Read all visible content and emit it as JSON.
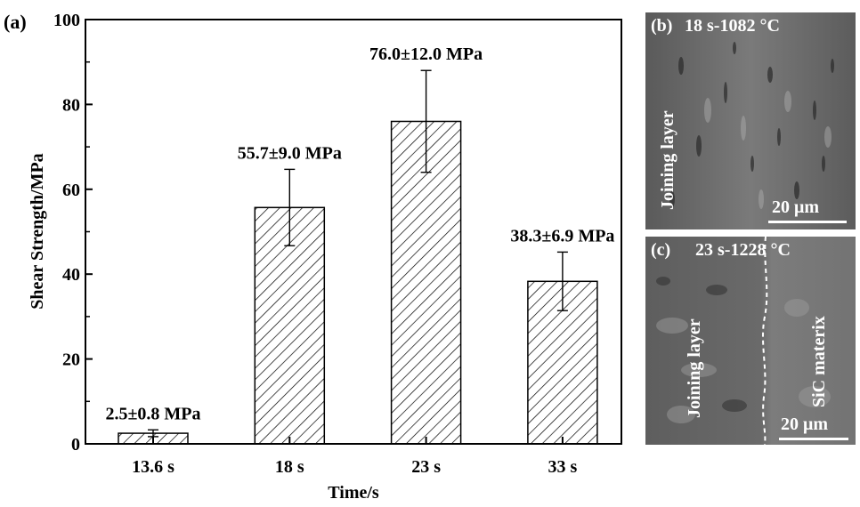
{
  "panel_a_label": "(a)",
  "chart_data": {
    "type": "bar",
    "categories": [
      "13.6 s",
      "18 s",
      "23 s",
      "33 s"
    ],
    "values": [
      2.5,
      55.7,
      76.0,
      38.3
    ],
    "errors": [
      0.8,
      9.0,
      12.0,
      6.9
    ],
    "data_labels": [
      "2.5±0.8 MPa",
      "55.7±9.0 MPa",
      "76.0±12.0 MPa",
      "38.3±6.9 MPa"
    ],
    "xlabel": "Time/s",
    "ylabel": "Shear Strength/MPa",
    "ylim": [
      0,
      100
    ],
    "yticks": [
      0,
      20,
      40,
      60,
      80,
      100
    ],
    "bar_fill": "hatched",
    "grid": false
  },
  "panel_b": {
    "label": "(b)",
    "title": "18 s-1082 °C",
    "region_label": "Joining layer",
    "scale": "20 μm"
  },
  "panel_c": {
    "label": "(c)",
    "title": "23 s-1228 °C",
    "region_left": "Joining layer",
    "region_right": "SiC materix",
    "scale": "20 μm"
  }
}
